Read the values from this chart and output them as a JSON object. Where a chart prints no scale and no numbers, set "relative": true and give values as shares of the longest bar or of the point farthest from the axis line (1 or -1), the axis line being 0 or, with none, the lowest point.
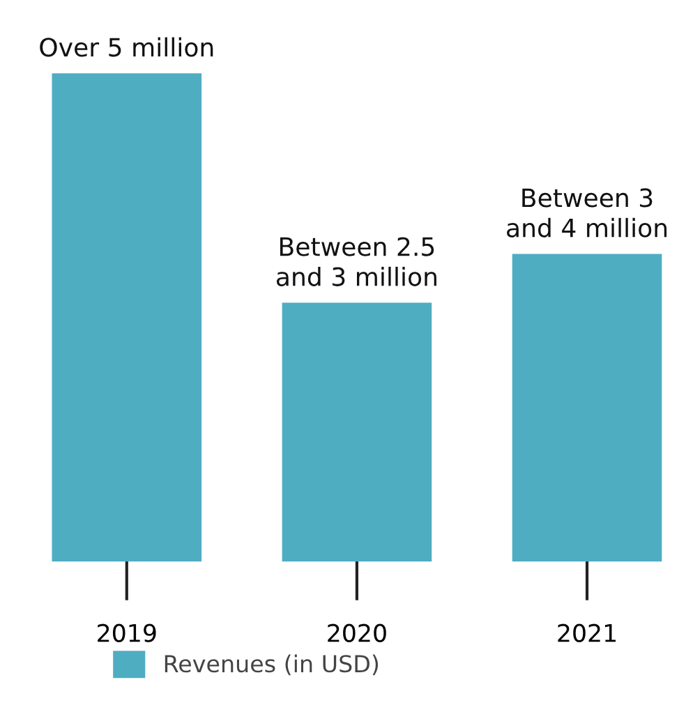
{
  "chart_data": {
    "type": "bar",
    "relative": true,
    "categories": [
      "2019",
      "2020",
      "2021"
    ],
    "series": [
      {
        "name": "Revenues (in USD)",
        "color": "#4fadc2",
        "values": [
          1,
          0.53,
          0.63
        ]
      }
    ],
    "value_labels": [
      "Over 5 million",
      "Between 2.5\nand 3 million",
      "Between 3\nand 4 million"
    ],
    "legend": "bottom",
    "grid": false
  }
}
